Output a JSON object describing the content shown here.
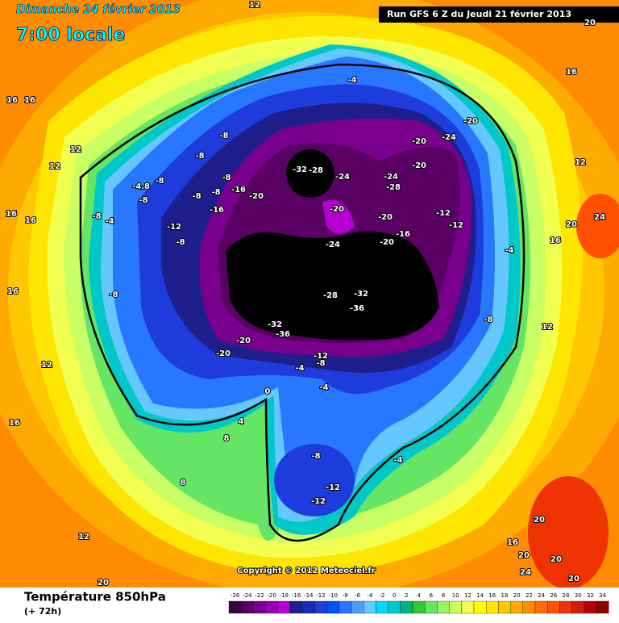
{
  "header": {
    "date": "Dimanche 24 février 2013",
    "time": "7:00 locale",
    "run": "Run GFS 6 Z du Jeudi 21 février 2013"
  },
  "footer": {
    "title": "Température 850hPa",
    "lead": "(+ 72h)",
    "copyright": "Copyright © 2012 Meteociel.fr"
  },
  "scale": {
    "values": [
      -26,
      -24,
      -22,
      -20,
      -18,
      -16,
      -14,
      -12,
      -10,
      -8,
      -6,
      -4,
      -2,
      0,
      2,
      4,
      6,
      8,
      10,
      12,
      14,
      16,
      18,
      20,
      22,
      24,
      26,
      28,
      30,
      32,
      34
    ],
    "colors": [
      "#3c0046",
      "#5a0064",
      "#78008c",
      "#9600b4",
      "#b400d2",
      "#1e1e8c",
      "#1e28b4",
      "#1e3cdc",
      "#0050ff",
      "#2878ff",
      "#4aa0ff",
      "#64c8ff",
      "#00dcff",
      "#00c8c8",
      "#00b478",
      "#32c832",
      "#64e664",
      "#a0f064",
      "#c8ff64",
      "#f0ff50",
      "#ffff00",
      "#ffe600",
      "#ffc800",
      "#ffaa00",
      "#ff8c00",
      "#ff6e00",
      "#ff5000",
      "#f03200",
      "#d21e00",
      "#b40000",
      "#8c0000"
    ]
  },
  "contour_labels": [
    -32,
    -28,
    -24,
    -24,
    -28,
    -20,
    -20,
    -24,
    -20,
    -20,
    -20,
    -20,
    -16,
    -12,
    -12,
    -24,
    -28,
    -32,
    -36,
    -32,
    -36,
    -20,
    -20,
    -12,
    -8,
    -4,
    -4,
    0,
    -8,
    -8,
    -8,
    -16,
    -20,
    -8,
    -8,
    -16,
    -8,
    -4.8,
    -8,
    -4,
    -8,
    -12,
    -8,
    -8,
    -4,
    -8,
    -4,
    -8,
    -12,
    -12,
    -4,
    4,
    8,
    8,
    12,
    20,
    16,
    16,
    12,
    12,
    16,
    16,
    16,
    12,
    16,
    20,
    16,
    12,
    20,
    24,
    16,
    20,
    24,
    20,
    16,
    20,
    20,
    12,
    12
  ]
}
